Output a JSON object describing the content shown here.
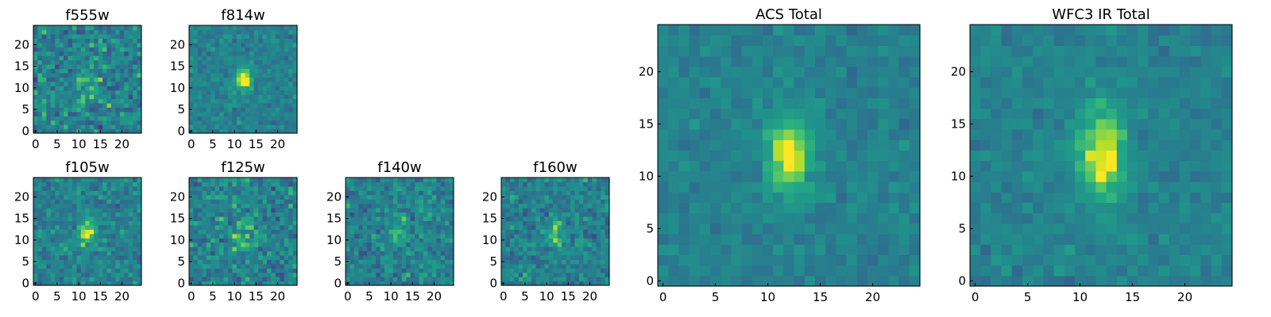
{
  "figure": {
    "panels": [
      {
        "title": "f555w",
        "xticks": [
          0,
          5,
          10,
          15,
          20
        ],
        "yticks": [
          0,
          5,
          10,
          15,
          20
        ]
      },
      {
        "title": "f814w",
        "xticks": [
          0,
          5,
          10,
          15,
          20
        ],
        "yticks": [
          0,
          5,
          10,
          15,
          20
        ]
      },
      {
        "title": "f105w",
        "xticks": [
          0,
          5,
          10,
          15,
          20
        ],
        "yticks": [
          0,
          5,
          10,
          15,
          20
        ]
      },
      {
        "title": "f125w",
        "xticks": [
          0,
          5,
          10,
          15,
          20
        ],
        "yticks": [
          0,
          5,
          10,
          15,
          20
        ]
      },
      {
        "title": "f140w",
        "xticks": [
          0,
          5,
          10,
          15,
          20
        ],
        "yticks": [
          0,
          5,
          10,
          15,
          20
        ]
      },
      {
        "title": "f160w",
        "xticks": [
          0,
          5,
          10,
          15,
          20
        ],
        "yticks": [
          0,
          5,
          10,
          15,
          20
        ]
      },
      {
        "title": "ACS Total",
        "xticks": [
          0,
          5,
          10,
          15,
          20
        ],
        "yticks": [
          0,
          5,
          10,
          15,
          20
        ]
      },
      {
        "title": "WFC3 IR Total",
        "xticks": [
          0,
          5,
          10,
          15,
          20
        ],
        "yticks": [
          0,
          5,
          10,
          15,
          20
        ]
      }
    ]
  },
  "chart_data": [
    {
      "type": "heatmap",
      "title": "f555w",
      "xlim": [
        -0.5,
        24.5
      ],
      "ylim": [
        -0.5,
        24.5
      ],
      "grid_size": 25,
      "colormap": "viridis",
      "source_peak": [
        12,
        12
      ],
      "source_sigma": [
        2.0,
        3.0
      ],
      "source_amplitude": 0.35,
      "noise": 0.55,
      "seed": 11
    },
    {
      "type": "heatmap",
      "title": "f814w",
      "xlim": [
        -0.5,
        24.5
      ],
      "ylim": [
        -0.5,
        24.5
      ],
      "grid_size": 25,
      "colormap": "viridis",
      "source_peak": [
        12,
        12
      ],
      "source_sigma": [
        1.2,
        2.0
      ],
      "source_amplitude": 1.0,
      "noise": 0.3,
      "seed": 23
    },
    {
      "type": "heatmap",
      "title": "f105w",
      "xlim": [
        -0.5,
        24.5
      ],
      "ylim": [
        -0.5,
        24.5
      ],
      "grid_size": 25,
      "colormap": "viridis",
      "source_peak": [
        12,
        12
      ],
      "source_sigma": [
        1.5,
        2.5
      ],
      "source_amplitude": 0.7,
      "noise": 0.4,
      "seed": 37
    },
    {
      "type": "heatmap",
      "title": "f125w",
      "xlim": [
        -0.5,
        24.5
      ],
      "ylim": [
        -0.5,
        24.5
      ],
      "grid_size": 25,
      "colormap": "viridis",
      "source_peak": [
        12,
        11
      ],
      "source_sigma": [
        2.0,
        2.5
      ],
      "source_amplitude": 0.45,
      "noise": 0.5,
      "seed": 41
    },
    {
      "type": "heatmap",
      "title": "f140w",
      "xlim": [
        -0.5,
        24.5
      ],
      "ylim": [
        -0.5,
        24.5
      ],
      "grid_size": 25,
      "colormap": "viridis",
      "source_peak": [
        12,
        12
      ],
      "source_sigma": [
        1.5,
        2.0
      ],
      "source_amplitude": 0.55,
      "noise": 0.45,
      "seed": 53
    },
    {
      "type": "heatmap",
      "title": "f160w",
      "xlim": [
        -0.5,
        24.5
      ],
      "ylim": [
        -0.5,
        24.5
      ],
      "grid_size": 25,
      "colormap": "viridis",
      "source_peak": [
        12,
        12
      ],
      "source_sigma": [
        1.3,
        2.2
      ],
      "source_amplitude": 0.7,
      "noise": 0.42,
      "seed": 67
    },
    {
      "type": "heatmap",
      "title": "ACS Total",
      "xlim": [
        -0.5,
        24.5
      ],
      "ylim": [
        -0.5,
        24.5
      ],
      "grid_size": 25,
      "colormap": "viridis",
      "source_peak": [
        12,
        12
      ],
      "source_sigma": [
        1.4,
        2.6
      ],
      "source_amplitude": 1.0,
      "noise": 0.22,
      "seed": 79
    },
    {
      "type": "heatmap",
      "title": "WFC3 IR Total",
      "xlim": [
        -0.5,
        24.5
      ],
      "ylim": [
        -0.5,
        24.5
      ],
      "grid_size": 25,
      "colormap": "viridis",
      "source_peak": [
        12,
        12
      ],
      "source_sigma": [
        1.5,
        3.0
      ],
      "source_amplitude": 1.0,
      "noise": 0.22,
      "seed": 97
    }
  ]
}
